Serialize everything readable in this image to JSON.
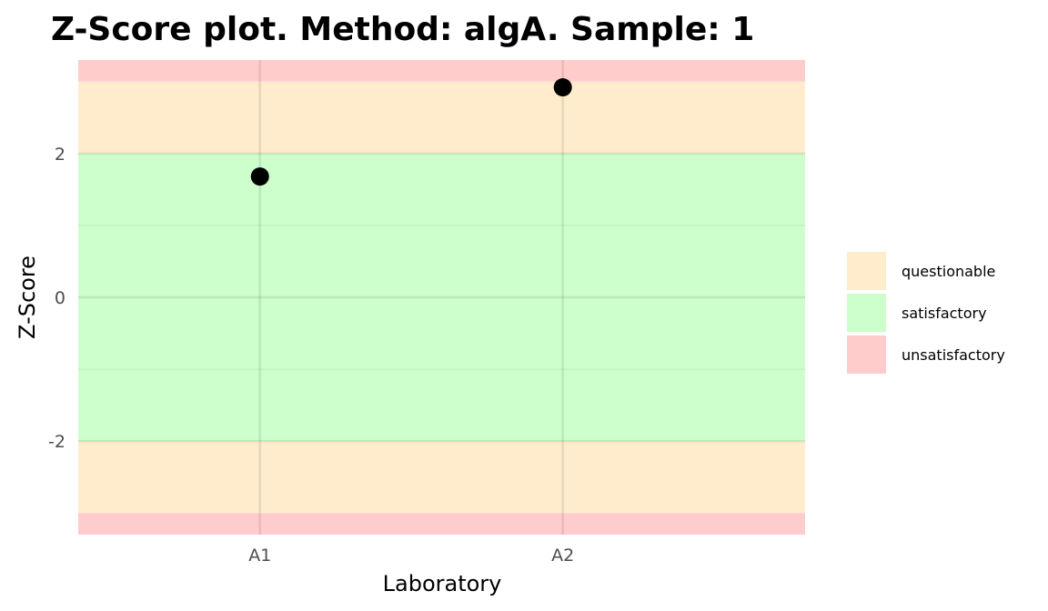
{
  "chart_data": {
    "type": "scatter",
    "title": "Z-Score plot. Method: algA. Sample: 1",
    "xlabel": "Laboratory",
    "ylabel": "Z-Score",
    "categories": [
      "A1",
      "A2"
    ],
    "values": [
      1.68,
      2.92
    ],
    "ylim": [
      -3.3,
      3.3
    ],
    "yticks": [
      -2,
      0,
      2
    ],
    "ytick_labels": [
      "-2",
      "0",
      "2"
    ],
    "grid": true,
    "legend_position": "right",
    "point_color": "#000000",
    "bands": [
      {
        "label": "unsatisfactory",
        "from": 3,
        "to": 3.3,
        "color": "#ffcccc"
      },
      {
        "label": "questionable",
        "from": 2,
        "to": 3,
        "color": "#ffeccc"
      },
      {
        "label": "satisfactory",
        "from": -2,
        "to": 2,
        "color": "#ccffcc"
      },
      {
        "label": "questionable",
        "from": -3,
        "to": -2,
        "color": "#ffeccc"
      },
      {
        "label": "unsatisfactory",
        "from": -3.3,
        "to": -3,
        "color": "#ffcccc"
      }
    ],
    "legend": [
      {
        "label": "questionable",
        "color": "#ffeccc"
      },
      {
        "label": "satisfactory",
        "color": "#ccffcc"
      },
      {
        "label": "unsatisfactory",
        "color": "#ffcccc"
      }
    ]
  }
}
